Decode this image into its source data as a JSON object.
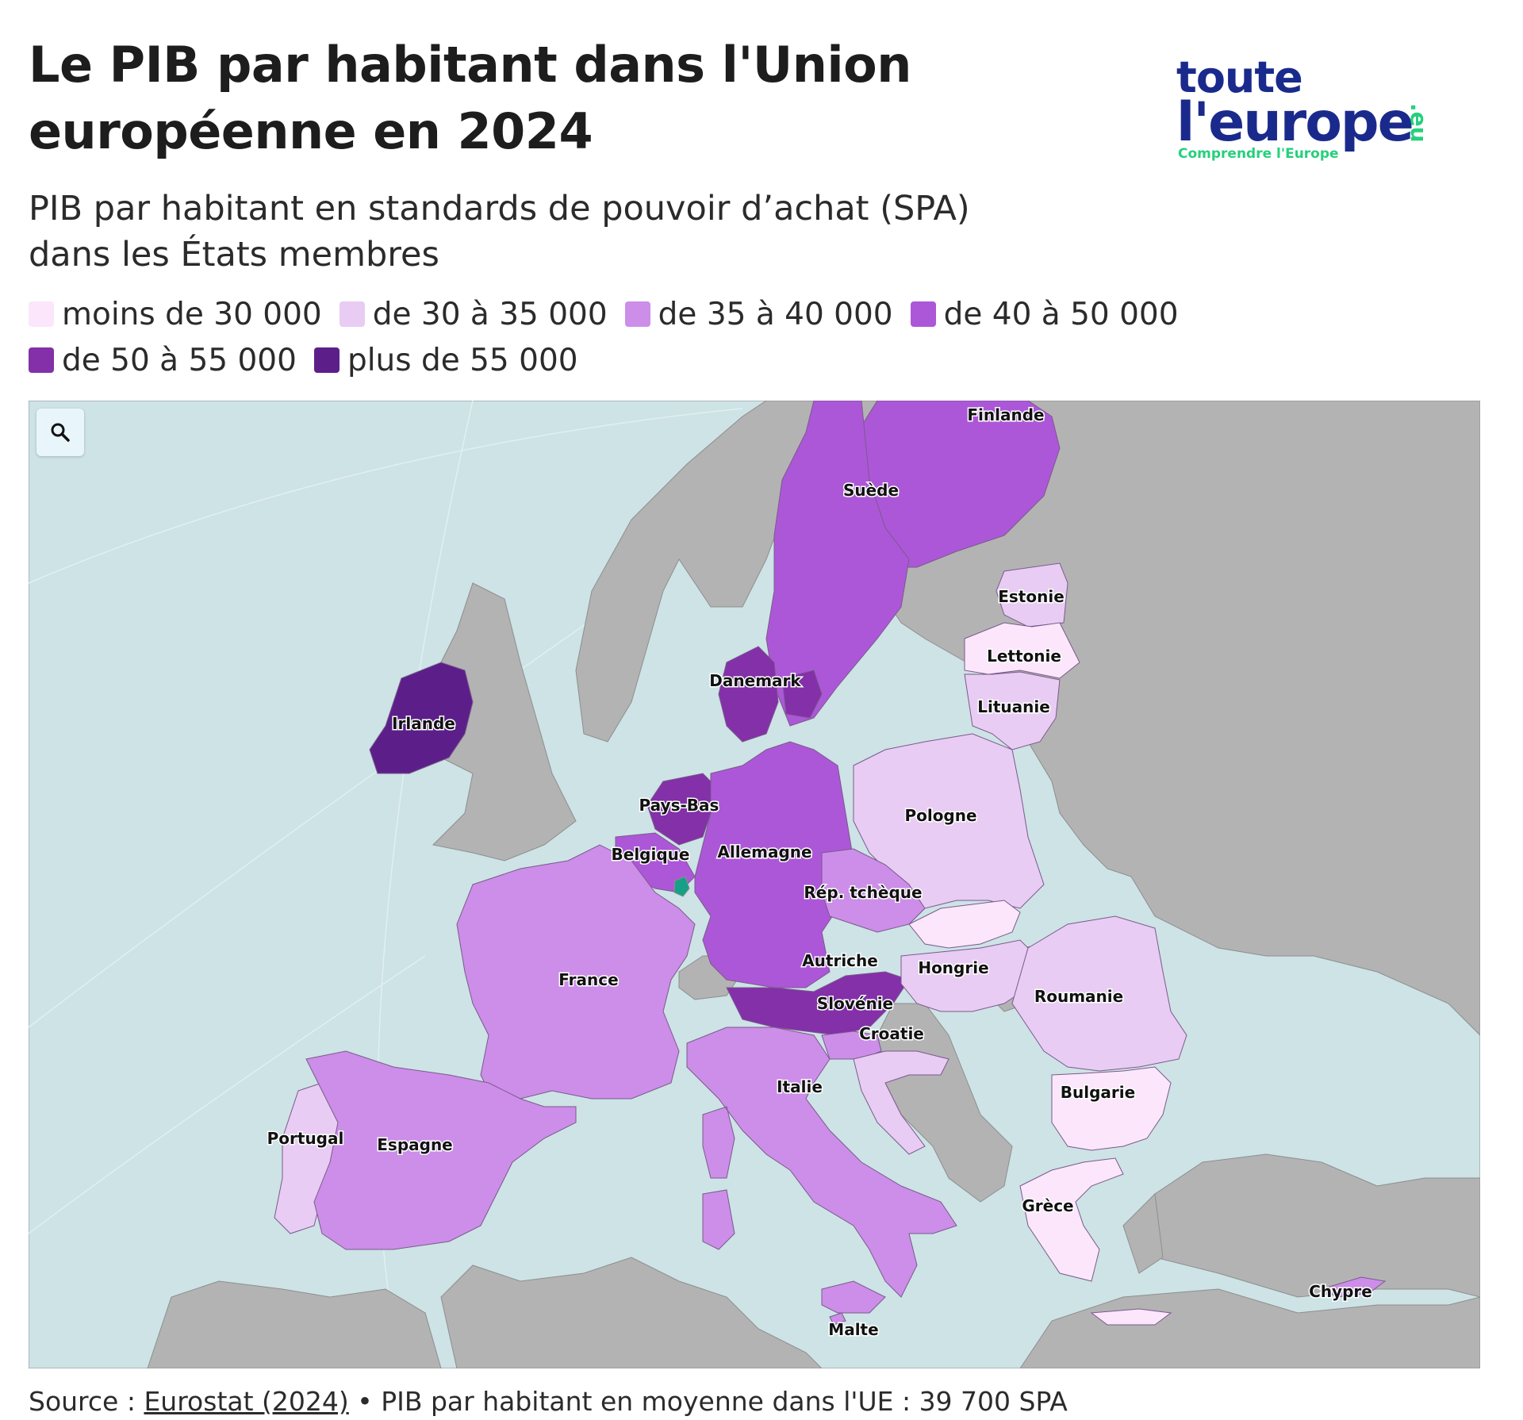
{
  "header": {
    "title_line1": "Le PIB par habitant dans l'Union",
    "title_line2": "européenne en 2024",
    "subtitle_line1": "PIB par habitant en standards de pouvoir d’achat (SPA)",
    "subtitle_line2": "dans les États membres"
  },
  "logo": {
    "line1": "toute",
    "line2": "l'europe",
    "suffix": ".eu",
    "tagline": "Comprendre l'Europe"
  },
  "legend": [
    {
      "label": "moins de 30 000",
      "color": "#fbe6fb"
    },
    {
      "label": "de 30 à 35 000",
      "color": "#e8ccf3"
    },
    {
      "label": "de 35 à 40 000",
      "color": "#cc8ee9"
    },
    {
      "label": "de 40 à 50 000",
      "color": "#ac57d8"
    },
    {
      "label": "de 50 à 55 000",
      "color": "#8330a9"
    },
    {
      "label": "plus de 55 000",
      "color": "#5c1f8a"
    }
  ],
  "map": {
    "zoom_icon": "search-icon",
    "sea_color": "#cde3e6",
    "non_eu_color": "#b3b3b3",
    "highlight_color": "#16a085",
    "countries": [
      {
        "name": "Finlande",
        "class": "de 40 à 50 000"
      },
      {
        "name": "Suède",
        "class": "de 40 à 50 000"
      },
      {
        "name": "Estonie",
        "class": "de 30 à 35 000"
      },
      {
        "name": "Lettonie",
        "class": "moins de 30 000"
      },
      {
        "name": "Lituanie",
        "class": "de 30 à 35 000"
      },
      {
        "name": "Danemark",
        "class": "de 50 à 55 000"
      },
      {
        "name": "Irlande",
        "class": "plus de 55 000"
      },
      {
        "name": "Pays-Bas",
        "class": "de 50 à 55 000"
      },
      {
        "name": "Belgique",
        "class": "de 40 à 50 000"
      },
      {
        "name": "Allemagne",
        "class": "de 40 à 50 000"
      },
      {
        "name": "Pologne",
        "class": "de 30 à 35 000"
      },
      {
        "name": "Rép. tchèque",
        "class": "de 35 à 40 000"
      },
      {
        "name": "France",
        "class": "de 35 à 40 000"
      },
      {
        "name": "Autriche",
        "class": "de 50 à 55 000"
      },
      {
        "name": "Hongrie",
        "class": "de 30 à 35 000"
      },
      {
        "name": "Roumanie",
        "class": "de 30 à 35 000"
      },
      {
        "name": "Slovénie",
        "class": "de 35 à 40 000"
      },
      {
        "name": "Croatie",
        "class": "de 30 à 35 000"
      },
      {
        "name": "Italie",
        "class": "de 35 à 40 000"
      },
      {
        "name": "Bulgarie",
        "class": "moins de 30 000"
      },
      {
        "name": "Portugal",
        "class": "de 30 à 35 000"
      },
      {
        "name": "Espagne",
        "class": "de 35 à 40 000"
      },
      {
        "name": "Grèce",
        "class": "moins de 30 000"
      },
      {
        "name": "Chypre",
        "class": "de 35 à 40 000"
      },
      {
        "name": "Malte",
        "class": "de 35 à 40 000"
      }
    ]
  },
  "source": {
    "prefix": "Source : ",
    "link_text": "Eurostat (2024)",
    "suffix": " • PIB par habitant en moyenne dans l'UE : 39 700 SPA"
  }
}
